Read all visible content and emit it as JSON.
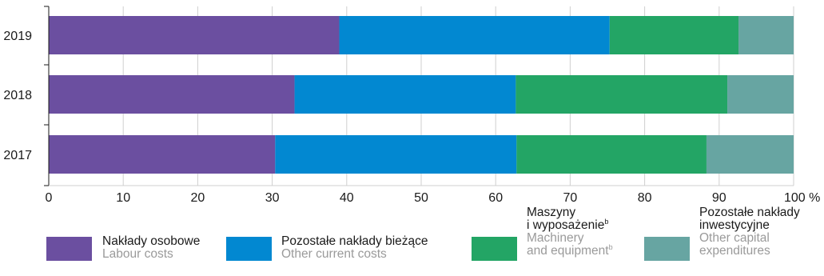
{
  "chart_data": {
    "type": "bar",
    "orientation": "horizontal",
    "stacked": true,
    "categories": [
      "2019",
      "2018",
      "2017"
    ],
    "series": [
      {
        "name": "Nakłady osobowe / Labour costs",
        "color": "#6b4fa0",
        "values": [
          39.0,
          33.0,
          30.4
        ]
      },
      {
        "name": "Pozostałe nakłady bieżące / Other current costs",
        "color": "#0288d1",
        "values": [
          36.3,
          29.7,
          32.4
        ]
      },
      {
        "name": "Maszyny i wyposażenie / Machinery and equipment",
        "color": "#23a565",
        "values": [
          17.3,
          28.4,
          25.5
        ]
      },
      {
        "name": "Pozostałe nakłady inwestycyjne / Other capital expenditures",
        "color": "#67a5a2",
        "values": [
          7.4,
          8.9,
          11.7
        ]
      }
    ],
    "xticks": [
      "0",
      "10",
      "20",
      "30",
      "40",
      "50",
      "60",
      "70",
      "80",
      "90",
      "100 %"
    ],
    "xlim": [
      0,
      100
    ],
    "grid": true
  },
  "legend": [
    {
      "pl": "Nakłady osobowe",
      "en": "Labour costs",
      "color": "#6b4fa0"
    },
    {
      "pl": "Pozostałe nakłady bieżące",
      "en": "Other current costs",
      "color": "#0288d1"
    },
    {
      "pl1": "Maszyny",
      "pl2": "i wyposażenie",
      "pl_sup": "b",
      "en1": "Machinery",
      "en2": "and equipment",
      "en_sup": "b",
      "color": "#23a565"
    },
    {
      "pl1": "Pozostałe nakłady",
      "pl2": "inwestycyjne",
      "en1": "Other capital",
      "en2": "expenditures",
      "color": "#67a5a2"
    }
  ]
}
